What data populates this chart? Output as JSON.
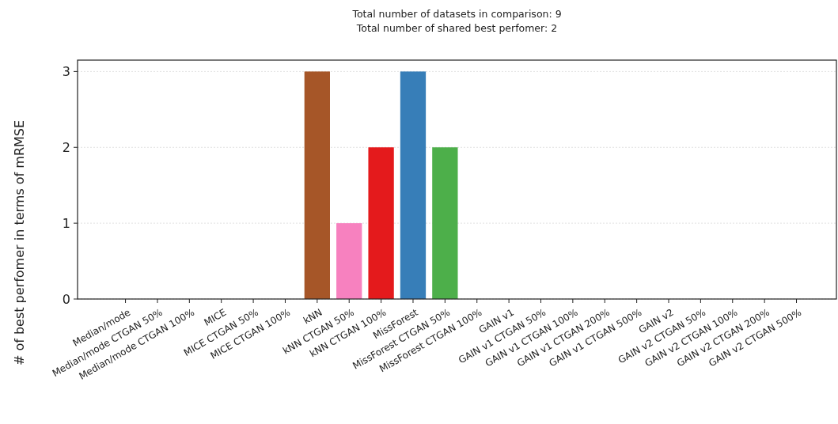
{
  "chart_data": {
    "type": "bar",
    "title": "Total number of datasets in comparison: 9",
    "subtitle": "Total number of shared best perfomer: 2",
    "ylabel": "# of best perfomer in terms of mRMSE",
    "categories": [
      "Median/mode",
      "Median/mode CTGAN 50%",
      "Median/mode CTGAN 100%",
      "MICE",
      "MICE CTGAN 50%",
      "MICE CTGAN 100%",
      "kNN",
      "kNN CTGAN 50%",
      "kNN CTGAN 100%",
      "MissForest",
      "MissForest CTGAN 50%",
      "MissForest CTGAN 100%",
      "GAIN v1",
      "GAIN v1 CTGAN 50%",
      "GAIN v1 CTGAN 100%",
      "GAIN v1 CTGAN 200%",
      "GAIN v1 CTGAN 500%",
      "GAIN v2",
      "GAIN v2 CTGAN 50%",
      "GAIN v2 CTGAN 100%",
      "GAIN v2 CTGAN 200%",
      "GAIN v2 CTGAN 500%"
    ],
    "values": [
      0,
      0,
      0,
      0,
      0,
      0,
      3,
      1,
      2,
      3,
      2,
      0,
      0,
      0,
      0,
      0,
      0,
      0,
      0,
      0,
      0,
      0
    ],
    "colors": [
      "#999999",
      "#999999",
      "#999999",
      "#999999",
      "#999999",
      "#999999",
      "#a65628",
      "#f781bf",
      "#e41a1c",
      "#377eb8",
      "#4daf4a",
      "#999999",
      "#999999",
      "#999999",
      "#999999",
      "#999999",
      "#999999",
      "#999999",
      "#999999",
      "#999999",
      "#999999",
      "#999999"
    ],
    "ylim": [
      0,
      3.15
    ],
    "yticks": [
      0,
      1,
      2,
      3
    ],
    "grid": "y"
  }
}
